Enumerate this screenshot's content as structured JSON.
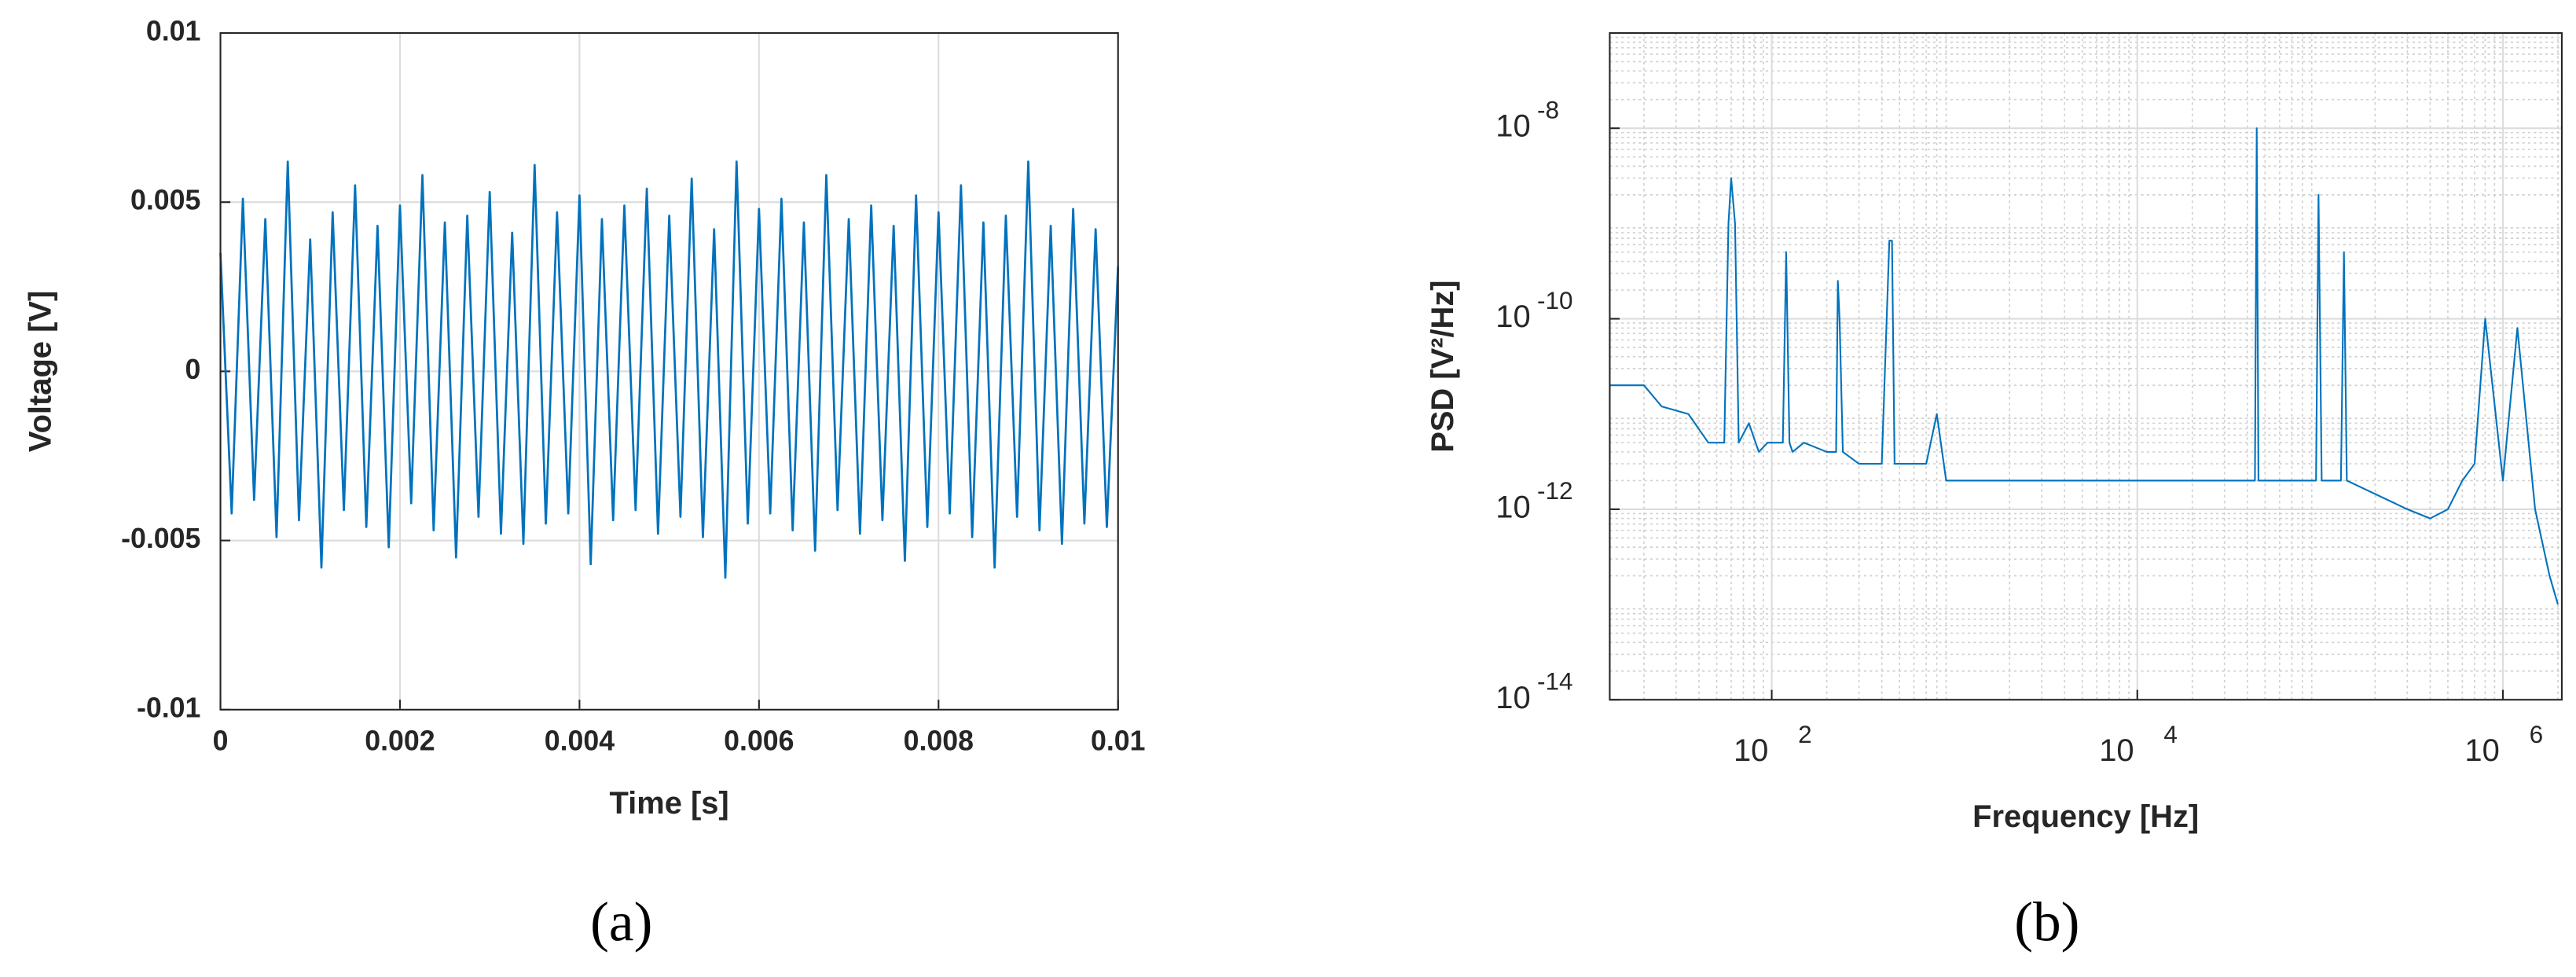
{
  "chart_data": [
    {
      "type": "line",
      "panel": "(a)",
      "xlabel": "Time [s]",
      "ylabel": "Voltage [V]",
      "xlim": [
        0,
        0.01
      ],
      "ylim": [
        -0.01,
        0.01
      ],
      "xticks": [
        0,
        0.002,
        0.004,
        0.006,
        0.008,
        0.01
      ],
      "yticks": [
        -0.01,
        -0.005,
        0,
        0.005,
        0.01
      ],
      "grid": true,
      "series": [
        {
          "name": "Voltage",
          "color": "#0072bd",
          "x": [
            0,
            0.000125,
            0.00025,
            0.000375,
            0.0005,
            0.000625,
            0.00075,
            0.000875,
            0.001,
            0.001125,
            0.00125,
            0.001375,
            0.0015,
            0.001625,
            0.00175,
            0.001875,
            0.002,
            0.002125,
            0.00225,
            0.002375,
            0.0025,
            0.002625,
            0.00275,
            0.002875,
            0.003,
            0.003125,
            0.00325,
            0.003375,
            0.0035,
            0.003625,
            0.00375,
            0.003875,
            0.004,
            0.004125,
            0.00425,
            0.004375,
            0.0045,
            0.004625,
            0.00475,
            0.004875,
            0.005,
            0.005125,
            0.00525,
            0.005375,
            0.0055,
            0.005625,
            0.00575,
            0.005875,
            0.006,
            0.006125,
            0.00625,
            0.006375,
            0.0065,
            0.006625,
            0.00675,
            0.006875,
            0.007,
            0.007125,
            0.00725,
            0.007375,
            0.0075,
            0.007625,
            0.00775,
            0.007875,
            0.008,
            0.008125,
            0.00825,
            0.008375,
            0.0085,
            0.008625,
            0.00875,
            0.008875,
            0.009,
            0.009125,
            0.00925,
            0.009375,
            0.0095,
            0.009625,
            0.00975,
            0.009875,
            0.01
          ],
          "values": [
            0.0035,
            -0.0042,
            0.0051,
            -0.0038,
            0.0045,
            -0.0049,
            0.0062,
            -0.0044,
            0.0039,
            -0.0058,
            0.0047,
            -0.0041,
            0.0055,
            -0.0046,
            0.0043,
            -0.0052,
            0.0049,
            -0.0039,
            0.0058,
            -0.0047,
            0.0044,
            -0.0055,
            0.0046,
            -0.0043,
            0.0053,
            -0.0048,
            0.0041,
            -0.0051,
            0.0061,
            -0.0045,
            0.0047,
            -0.0042,
            0.0052,
            -0.0057,
            0.0045,
            -0.0044,
            0.0049,
            -0.0041,
            0.0054,
            -0.0048,
            0.0046,
            -0.0043,
            0.0057,
            -0.0049,
            0.0042,
            -0.0061,
            0.0062,
            -0.0045,
            0.0048,
            -0.0042,
            0.0051,
            -0.0047,
            0.0044,
            -0.0053,
            0.0058,
            -0.0041,
            0.0045,
            -0.0048,
            0.0049,
            -0.0044,
            0.0043,
            -0.0056,
            0.0052,
            -0.0046,
            0.0047,
            -0.0042,
            0.0055,
            -0.0049,
            0.0044,
            -0.0058,
            0.0046,
            -0.0043,
            0.0062,
            -0.0047,
            0.0043,
            -0.0051,
            0.0048,
            -0.0045,
            0.0042,
            -0.0046,
            0.0031
          ]
        }
      ]
    },
    {
      "type": "line",
      "panel": "(b)",
      "xlabel": "Frequency [Hz]",
      "ylabel": "PSD [V²/Hz]",
      "xlog": true,
      "ylog": true,
      "grid": true,
      "minor_grid": true,
      "xlim": [
        13,
        2100000
      ],
      "ylim": [
        1e-14,
        1e-07
      ],
      "xticks": [
        {
          "value": 100,
          "label": "10",
          "exponent": "2"
        },
        {
          "value": 10000,
          "label": "10",
          "exponent": "4"
        },
        {
          "value": 1000000,
          "label": "10",
          "exponent": "6"
        }
      ],
      "yticks": [
        {
          "value": 1e-14,
          "label": "10",
          "exponent": "-14"
        },
        {
          "value": 1e-12,
          "label": "10",
          "exponent": "-12"
        },
        {
          "value": 1e-10,
          "label": "10",
          "exponent": "-10"
        },
        {
          "value": 1e-08,
          "label": "10",
          "exponent": "-8"
        }
      ],
      "series": [
        {
          "name": "PSD",
          "color": "#0072bd",
          "x": [
            13,
            20,
            25,
            35,
            45,
            55,
            58,
            60,
            63,
            66,
            75,
            85,
            95,
            115,
            120,
            125,
            130,
            150,
            200,
            225,
            230,
            235,
            245,
            300,
            400,
            440,
            455,
            470,
            700,
            800,
            900,
            2000,
            5000,
            10000,
            30000,
            44000,
            45000,
            46000,
            80000,
            95000,
            98000,
            102000,
            130000,
            135000,
            140000,
            300000,
            400000,
            500000,
            600000,
            700000,
            800000,
            1000000,
            1200000,
            1500000,
            1800000,
            2000000
          ],
          "values": [
            2e-11,
            2e-11,
            1.2e-11,
            1e-11,
            5e-12,
            5e-12,
            1e-09,
            3e-09,
            1e-09,
            5e-12,
            8e-12,
            4e-12,
            5e-12,
            5e-12,
            5e-10,
            5e-12,
            4e-12,
            5e-12,
            4e-12,
            4e-12,
            2.5e-10,
            1e-10,
            4e-12,
            3e-12,
            3e-12,
            6.6e-10,
            6.6e-10,
            3e-12,
            3e-12,
            1e-11,
            2e-12,
            2e-12,
            2e-12,
            2e-12,
            2e-12,
            2e-12,
            1e-08,
            2e-12,
            2e-12,
            2e-12,
            2e-09,
            2e-12,
            2e-12,
            5e-10,
            2e-12,
            1e-12,
            8e-13,
            1e-12,
            2e-12,
            3e-12,
            1e-10,
            2e-12,
            8e-11,
            1e-12,
            2e-13,
            1e-13
          ]
        }
      ]
    }
  ]
}
